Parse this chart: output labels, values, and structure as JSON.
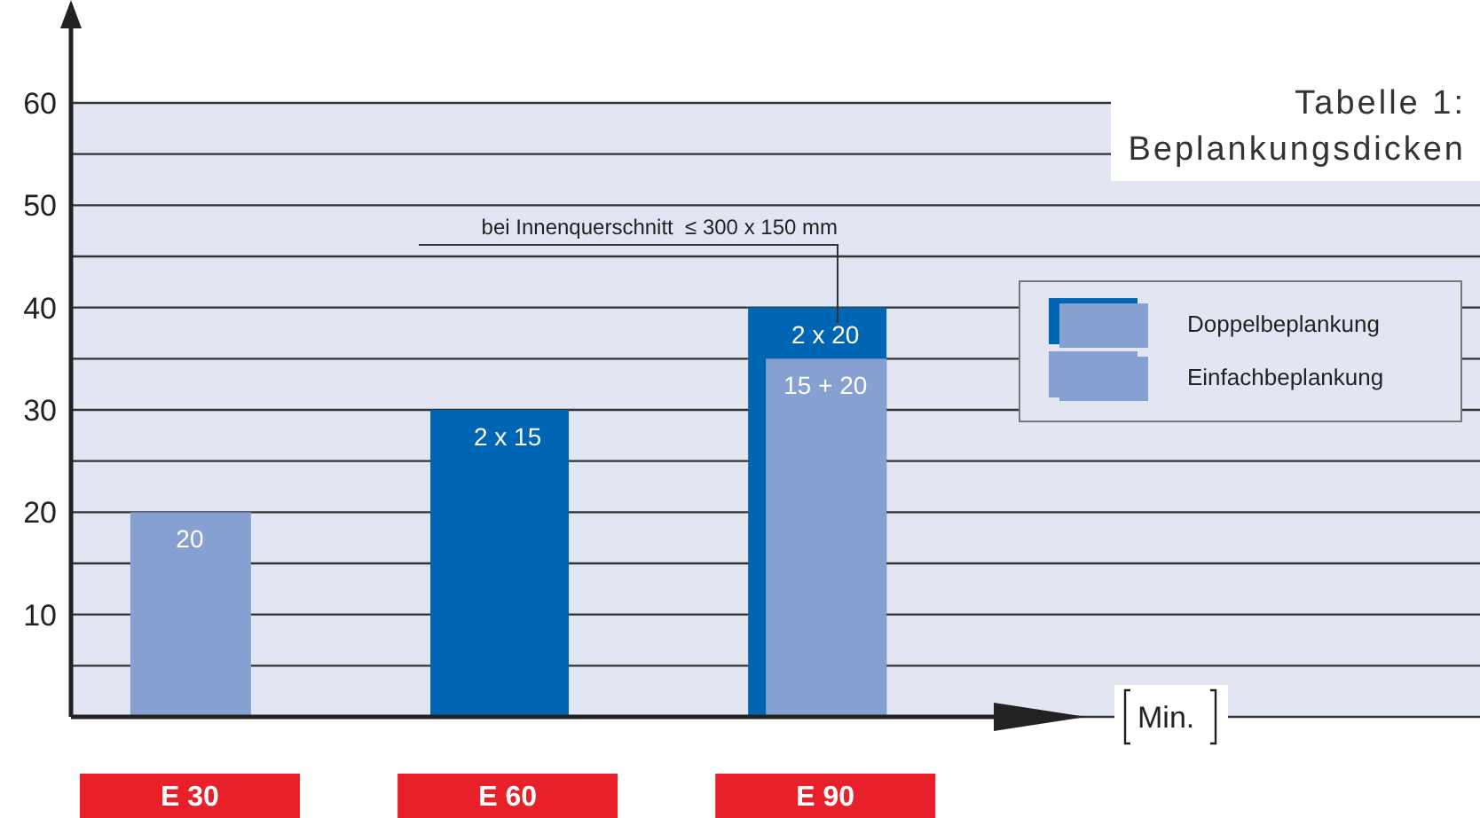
{
  "chart_data": {
    "type": "bar",
    "title": "Tabelle 1:\nBeplankungsdicken",
    "xlabel": "Min.",
    "categories": [
      "E 30",
      "E 60",
      "E 90"
    ],
    "series": [
      {
        "name": "Doppelbeplankung",
        "color": "#0066b3",
        "values": [
          null,
          30,
          40
        ]
      },
      {
        "name": "Einfachbeplankung",
        "color": "#86a0d2",
        "values": [
          20,
          null,
          35
        ]
      }
    ],
    "annotations": [
      "bei Innenquerschnitt  ≤ 300 x 150 mm",
      {
        "text": "20",
        "x": "E 30",
        "y": 20
      },
      {
        "text": "2 x 15",
        "x": "E 60",
        "y": 30
      },
      {
        "text": "2 x 20",
        "x": "E 90",
        "y": 40
      },
      {
        "text": "15 + 20",
        "x": "E 90",
        "y": 35
      }
    ],
    "ylim": [
      0,
      60
    ],
    "yticks": [
      {
        "value": 0,
        "label": null
      },
      {
        "value": 5,
        "label": null
      },
      10,
      {
        "value": 15,
        "label": null
      },
      20,
      {
        "value": 25,
        "label": null
      },
      30,
      {
        "value": 35,
        "label": null
      },
      40,
      {
        "value": 45,
        "label": null
      },
      50,
      {
        "value": 55,
        "label": null
      },
      60
    ],
    "grid": "y",
    "legend": "right"
  }
}
